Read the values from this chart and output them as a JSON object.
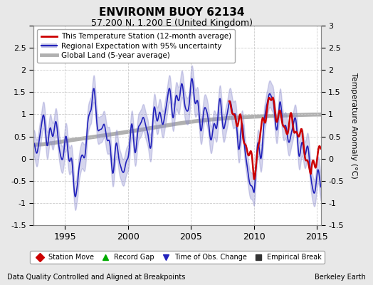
{
  "title": "ENVIRONM BUOY 62134",
  "subtitle": "57.200 N, 1.200 E (United Kingdom)",
  "ylabel": "Temperature Anomaly (°C)",
  "xlabel_left": "Data Quality Controlled and Aligned at Breakpoints",
  "xlabel_right": "Berkeley Earth",
  "ylim": [
    -1.5,
    3.0
  ],
  "yticks": [
    -1.5,
    -1.0,
    -0.5,
    0.0,
    0.5,
    1.0,
    1.5,
    2.0,
    2.5,
    3.0
  ],
  "xlim": [
    1992.5,
    2015.3
  ],
  "xticks": [
    1995,
    2000,
    2005,
    2010,
    2015
  ],
  "bg_color": "#e8e8e8",
  "plot_bg_color": "#ffffff",
  "legend_labels": [
    "This Temperature Station (12-month average)",
    "Regional Expectation with 95% uncertainty",
    "Global Land (5-year average)"
  ],
  "station_line_color": "#cc0000",
  "regional_line_color": "#2222bb",
  "regional_fill_color": "#8888cc",
  "global_line_color": "#b0b0b0",
  "marker_legend": [
    {
      "label": "Station Move",
      "marker": "D",
      "color": "#cc0000"
    },
    {
      "label": "Record Gap",
      "marker": "^",
      "color": "#00aa00"
    },
    {
      "label": "Time of Obs. Change",
      "marker": "v",
      "color": "#2222bb"
    },
    {
      "label": "Empirical Break",
      "marker": "s",
      "color": "#333333"
    }
  ],
  "regional_x": [
    1992.5,
    1993.0,
    1993.5,
    1994.0,
    1994.5,
    1995.0,
    1995.5,
    1996.0,
    1996.5,
    1997.0,
    1997.5,
    1998.0,
    1998.5,
    1999.0,
    1999.5,
    2000.0,
    2000.5,
    2001.0,
    2001.5,
    2002.0,
    2002.5,
    2003.0,
    2003.5,
    2004.0,
    2004.5,
    2005.0,
    2005.5,
    2006.0,
    2006.5,
    2007.0,
    2007.5,
    2008.0,
    2008.5,
    2009.0,
    2009.5,
    2010.0,
    2010.5,
    2011.0,
    2011.5,
    2012.0,
    2012.5,
    2013.0,
    2013.5,
    2014.0,
    2014.5,
    2015.0
  ],
  "regional_y": [
    0.3,
    0.5,
    0.7,
    0.6,
    0.4,
    0.2,
    -0.1,
    -0.7,
    0.2,
    1.2,
    1.1,
    0.6,
    0.3,
    0.0,
    -0.2,
    0.1,
    0.5,
    0.8,
    0.6,
    0.7,
    1.0,
    1.1,
    1.3,
    1.4,
    1.3,
    1.5,
    1.2,
    0.9,
    0.7,
    0.8,
    1.0,
    1.1,
    0.9,
    0.5,
    -0.2,
    -0.7,
    0.3,
    1.2,
    1.3,
    0.9,
    0.7,
    0.6,
    0.5,
    0.2,
    -0.3,
    -0.6
  ],
  "regional_upper": [
    0.55,
    0.75,
    0.95,
    0.85,
    0.65,
    0.45,
    0.15,
    -0.45,
    0.45,
    1.45,
    1.35,
    0.85,
    0.55,
    0.25,
    0.05,
    0.35,
    0.75,
    1.05,
    0.85,
    0.95,
    1.25,
    1.35,
    1.55,
    1.65,
    1.55,
    1.75,
    1.45,
    1.15,
    0.95,
    1.05,
    1.25,
    1.35,
    1.15,
    0.75,
    0.05,
    -0.45,
    0.55,
    1.45,
    1.55,
    1.15,
    0.95,
    0.85,
    0.75,
    0.45,
    -0.05,
    -0.35
  ],
  "regional_lower": [
    0.05,
    0.25,
    0.45,
    0.35,
    0.15,
    -0.05,
    -0.35,
    -0.95,
    -0.05,
    0.95,
    0.85,
    0.35,
    0.05,
    -0.25,
    -0.45,
    -0.15,
    0.25,
    0.55,
    0.35,
    0.45,
    0.75,
    0.85,
    1.05,
    1.15,
    1.05,
    1.25,
    0.95,
    0.65,
    0.45,
    0.55,
    0.75,
    0.85,
    0.65,
    0.25,
    -0.45,
    -0.95,
    0.05,
    0.95,
    1.05,
    0.65,
    0.45,
    0.35,
    0.25,
    -0.05,
    -0.55,
    -0.85
  ],
  "global_x": [
    1992.5,
    1995.0,
    1998.0,
    2001.0,
    2004.0,
    2007.0,
    2010.0,
    2013.0,
    2015.0
  ],
  "global_y": [
    0.28,
    0.4,
    0.52,
    0.65,
    0.8,
    0.9,
    0.95,
    0.98,
    1.0
  ],
  "station_x": [
    2008.0,
    2008.5,
    2009.0,
    2009.5,
    2010.0,
    2010.5,
    2011.0,
    2011.5,
    2012.0,
    2012.5,
    2013.0,
    2013.5,
    2014.0,
    2014.5,
    2015.0
  ],
  "station_y": [
    1.1,
    1.0,
    0.7,
    0.2,
    -0.3,
    0.5,
    1.2,
    1.3,
    0.9,
    0.7,
    0.8,
    0.6,
    0.3,
    -0.4,
    0.15
  ]
}
